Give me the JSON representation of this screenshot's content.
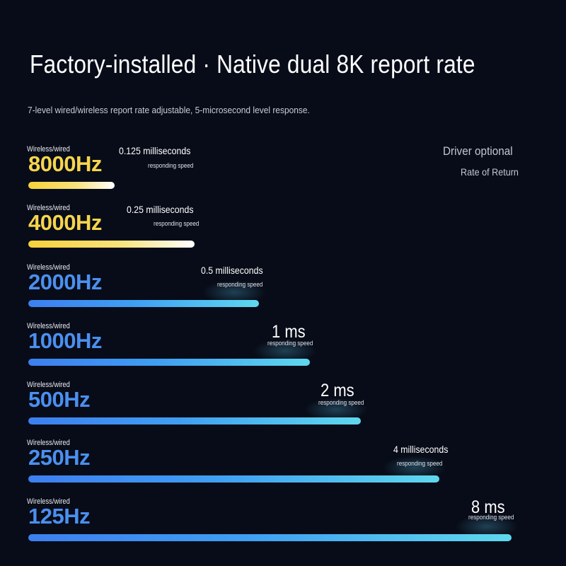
{
  "title": "Factory-installed · Native dual 8K report rate",
  "subtitle": "7-level wired/wireless report rate adjustable, 5-microsecond level response.",
  "side_label_1": "Driver optional",
  "side_label_2": "Rate of Return",
  "colors": {
    "background": "#080c18",
    "gold": "#f6d54c",
    "blue": "#4a90f0",
    "cyan": "#5fd8ee"
  },
  "chart_data": {
    "type": "bar",
    "orientation": "horizontal",
    "categories": [
      "8000Hz",
      "4000Hz",
      "2000Hz",
      "1000Hz",
      "500Hz",
      "250Hz",
      "125Hz"
    ],
    "values": [
      0.125,
      0.25,
      0.5,
      1,
      2,
      4,
      8
    ],
    "value_labels": [
      "0.125 milliseconds",
      "0.25 milliseconds",
      "0.5 milliseconds",
      "1 ms",
      "2 ms",
      "4 milliseconds",
      "8 ms"
    ],
    "value_sublabel": "responding speed",
    "mode_label": "Wireless/wired",
    "value_unit": "ms",
    "grid": false
  }
}
